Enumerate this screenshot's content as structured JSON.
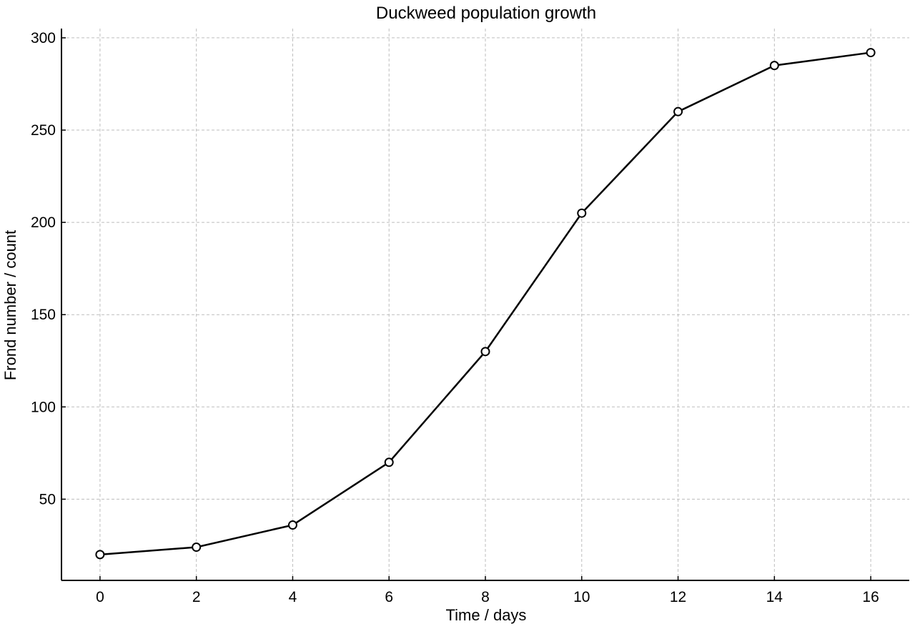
{
  "chart_data": {
    "type": "line",
    "title": "Duckweed population growth",
    "xlabel": "Time / days",
    "ylabel": "Frond number / count",
    "x": [
      0,
      2,
      4,
      6,
      8,
      10,
      12,
      14,
      16
    ],
    "series": [
      {
        "values": [
          20,
          24,
          36,
          70,
          130,
          205,
          260,
          285,
          292
        ]
      }
    ],
    "xlim": [
      -0.8,
      16.8
    ],
    "ylim": [
      6,
      305
    ],
    "xticks": [
      0,
      2,
      4,
      6,
      8,
      10,
      12,
      14,
      16
    ],
    "yticks": [
      50,
      100,
      150,
      200,
      250,
      300
    ],
    "grid": true,
    "marker": "open-circle",
    "line_color": "#000000",
    "grid_color": "#bdbdbd"
  }
}
